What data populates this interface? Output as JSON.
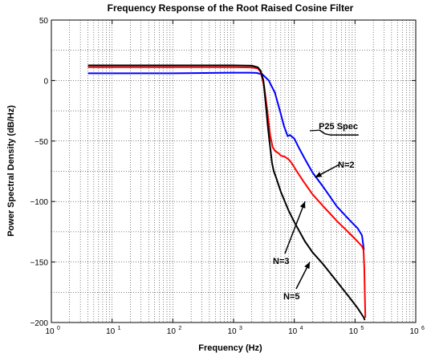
{
  "chart_data": {
    "type": "line",
    "title": "Frequency Response of the Root Raised Cosine Filter",
    "xlabel": "Frequency (Hz)",
    "ylabel": "Power Spectral Density (dB/Hz)",
    "x_scale": "log",
    "xlim": [
      1,
      1000000
    ],
    "ylim": [
      -200,
      50
    ],
    "grid": true,
    "x_ticks": [
      {
        "value": 1,
        "base": "10",
        "exp": "0"
      },
      {
        "value": 10,
        "base": "10",
        "exp": "1"
      },
      {
        "value": 100,
        "base": "10",
        "exp": "2"
      },
      {
        "value": 1000,
        "base": "10",
        "exp": "3"
      },
      {
        "value": 10000,
        "base": "10",
        "exp": "4"
      },
      {
        "value": 100000,
        "base": "10",
        "exp": "5"
      },
      {
        "value": 1000000,
        "base": "10",
        "exp": "6"
      }
    ],
    "y_ticks": [
      {
        "value": 50,
        "label": "50"
      },
      {
        "value": 0,
        "label": "0"
      },
      {
        "value": -50,
        "label": "−50"
      },
      {
        "value": -100,
        "label": "−100"
      },
      {
        "value": -150,
        "label": "−150"
      },
      {
        "value": -200,
        "label": "−200"
      }
    ],
    "series": [
      {
        "name": "N=2",
        "color": "#0000ff",
        "x": [
          4,
          100,
          1000,
          1800,
          2400,
          3000,
          3800,
          4800,
          5800,
          6800,
          7800,
          8500,
          10000,
          12000,
          15000,
          20000,
          30000,
          50000,
          80000,
          110000,
          130000,
          140000
        ],
        "y": [
          6,
          6,
          6.5,
          6.5,
          6.3,
          5,
          0,
          -10,
          -25,
          -38,
          -46,
          -45,
          -48,
          -56,
          -65,
          -76,
          -88,
          -104,
          -115,
          -122,
          -128,
          -140
        ]
      },
      {
        "name": "N=3",
        "color": "#ff0000",
        "x": [
          4,
          100,
          1000,
          2000,
          2500,
          2800,
          3200,
          3600,
          4000,
          4400,
          4800,
          5500,
          6000,
          7000,
          8000,
          9000,
          11000,
          14000,
          20000,
          30000,
          50000,
          80000,
          110000,
          130000,
          138000,
          142000,
          145000,
          148000
        ],
        "y": [
          11,
          11,
          11,
          10.8,
          10,
          7,
          -5,
          -25,
          -45,
          -55,
          -58,
          -60,
          -62,
          -63,
          -65,
          -68,
          -75,
          -83,
          -94,
          -104,
          -116,
          -126,
          -133,
          -137,
          -140,
          -155,
          -175,
          -196
        ]
      },
      {
        "name": "N=5",
        "color": "#000000",
        "x": [
          4,
          100,
          1000,
          2000,
          2500,
          2800,
          3100,
          3400,
          3700,
          4000,
          4300,
          4600,
          5000,
          6000,
          8000,
          10000,
          15000,
          20000,
          30000,
          50000,
          80000,
          110000,
          140000,
          145000
        ],
        "y": [
          12.5,
          12.5,
          12.5,
          12.3,
          11,
          8,
          0,
          -20,
          -40,
          -55,
          -68,
          -75,
          -80,
          -92,
          -107,
          -117,
          -133,
          -142,
          -152,
          -166,
          -179,
          -188,
          -196,
          -198
        ]
      }
    ],
    "reference_line": {
      "name": "P25 Spec",
      "color": "#000000",
      "x": [
        26000,
        32000,
        40000,
        115000
      ],
      "y": [
        -41,
        -44,
        -45,
        -45
      ]
    },
    "annotations": [
      {
        "text": "P25 Spec",
        "target_x": 26000,
        "target_y": -41
      },
      {
        "text": "N=2",
        "target_x": 22000,
        "target_y": -80
      },
      {
        "text": "N=3",
        "target_x": 15000,
        "target_y": -100
      },
      {
        "text": "N=5",
        "target_x": 18000,
        "target_y": -150
      }
    ]
  }
}
